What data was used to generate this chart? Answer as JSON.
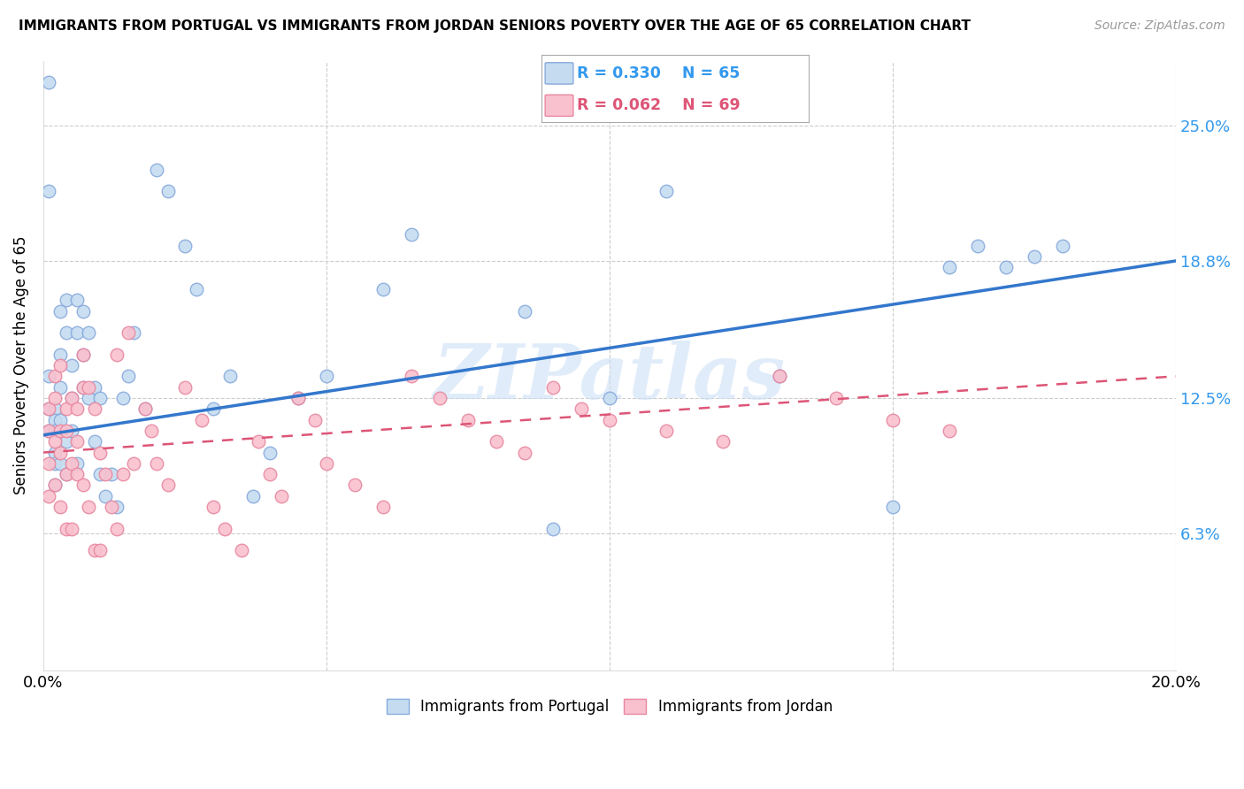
{
  "title": "IMMIGRANTS FROM PORTUGAL VS IMMIGRANTS FROM JORDAN SENIORS POVERTY OVER THE AGE OF 65 CORRELATION CHART",
  "source": "Source: ZipAtlas.com",
  "ylabel": "Seniors Poverty Over the Age of 65",
  "xlim": [
    0.0,
    0.2
  ],
  "ylim": [
    0.0,
    0.28
  ],
  "ytick_labels": [
    "6.3%",
    "12.5%",
    "18.8%",
    "25.0%"
  ],
  "ytick_values": [
    0.063,
    0.125,
    0.188,
    0.25
  ],
  "portugal_color": "#c5dcf0",
  "jordan_color": "#f9c0ce",
  "portugal_edge": "#88aadd",
  "jordan_edge": "#e888a0",
  "portugal_line_color": "#3377cc",
  "jordan_line_color": "#dd5577",
  "watermark": "ZIPatlas",
  "portugal_label": "Immigrants from Portugal",
  "jordan_label": "Immigrants from Jordan",
  "portugal_R": "R = 0.330",
  "portugal_N": "N = 65",
  "jordan_R": "R = 0.062",
  "jordan_N": "N = 69",
  "portugal_x": [
    0.001,
    0.001,
    0.001,
    0.001,
    0.001,
    0.002,
    0.002,
    0.002,
    0.002,
    0.002,
    0.002,
    0.003,
    0.003,
    0.003,
    0.003,
    0.003,
    0.004,
    0.004,
    0.004,
    0.004,
    0.005,
    0.005,
    0.005,
    0.006,
    0.006,
    0.006,
    0.007,
    0.007,
    0.007,
    0.008,
    0.008,
    0.009,
    0.009,
    0.01,
    0.01,
    0.011,
    0.012,
    0.013,
    0.014,
    0.015,
    0.016,
    0.018,
    0.02,
    0.022,
    0.025,
    0.027,
    0.03,
    0.033,
    0.037,
    0.04,
    0.045,
    0.05,
    0.06,
    0.065,
    0.085,
    0.09,
    0.1,
    0.11,
    0.13,
    0.15,
    0.16,
    0.165,
    0.17,
    0.175,
    0.18
  ],
  "portugal_y": [
    0.27,
    0.22,
    0.135,
    0.12,
    0.11,
    0.1,
    0.095,
    0.12,
    0.115,
    0.11,
    0.085,
    0.165,
    0.145,
    0.13,
    0.115,
    0.095,
    0.17,
    0.155,
    0.105,
    0.09,
    0.14,
    0.125,
    0.11,
    0.17,
    0.155,
    0.095,
    0.165,
    0.145,
    0.13,
    0.155,
    0.125,
    0.13,
    0.105,
    0.125,
    0.09,
    0.08,
    0.09,
    0.075,
    0.125,
    0.135,
    0.155,
    0.12,
    0.23,
    0.22,
    0.195,
    0.175,
    0.12,
    0.135,
    0.08,
    0.1,
    0.125,
    0.135,
    0.175,
    0.2,
    0.165,
    0.065,
    0.125,
    0.22,
    0.135,
    0.075,
    0.185,
    0.195,
    0.185,
    0.19,
    0.195
  ],
  "jordan_x": [
    0.001,
    0.001,
    0.001,
    0.001,
    0.002,
    0.002,
    0.002,
    0.002,
    0.003,
    0.003,
    0.003,
    0.003,
    0.004,
    0.004,
    0.004,
    0.004,
    0.005,
    0.005,
    0.005,
    0.006,
    0.006,
    0.006,
    0.007,
    0.007,
    0.007,
    0.008,
    0.008,
    0.009,
    0.009,
    0.01,
    0.01,
    0.011,
    0.012,
    0.013,
    0.013,
    0.014,
    0.015,
    0.016,
    0.018,
    0.019,
    0.02,
    0.022,
    0.025,
    0.028,
    0.03,
    0.032,
    0.035,
    0.038,
    0.04,
    0.042,
    0.045,
    0.048,
    0.05,
    0.055,
    0.06,
    0.065,
    0.07,
    0.075,
    0.08,
    0.085,
    0.09,
    0.095,
    0.1,
    0.11,
    0.12,
    0.13,
    0.14,
    0.15,
    0.16
  ],
  "jordan_y": [
    0.12,
    0.11,
    0.095,
    0.08,
    0.135,
    0.125,
    0.105,
    0.085,
    0.14,
    0.11,
    0.1,
    0.075,
    0.12,
    0.11,
    0.09,
    0.065,
    0.125,
    0.095,
    0.065,
    0.12,
    0.105,
    0.09,
    0.145,
    0.13,
    0.085,
    0.13,
    0.075,
    0.12,
    0.055,
    0.1,
    0.055,
    0.09,
    0.075,
    0.145,
    0.065,
    0.09,
    0.155,
    0.095,
    0.12,
    0.11,
    0.095,
    0.085,
    0.13,
    0.115,
    0.075,
    0.065,
    0.055,
    0.105,
    0.09,
    0.08,
    0.125,
    0.115,
    0.095,
    0.085,
    0.075,
    0.135,
    0.125,
    0.115,
    0.105,
    0.1,
    0.13,
    0.12,
    0.115,
    0.11,
    0.105,
    0.135,
    0.125,
    0.115,
    0.11
  ]
}
